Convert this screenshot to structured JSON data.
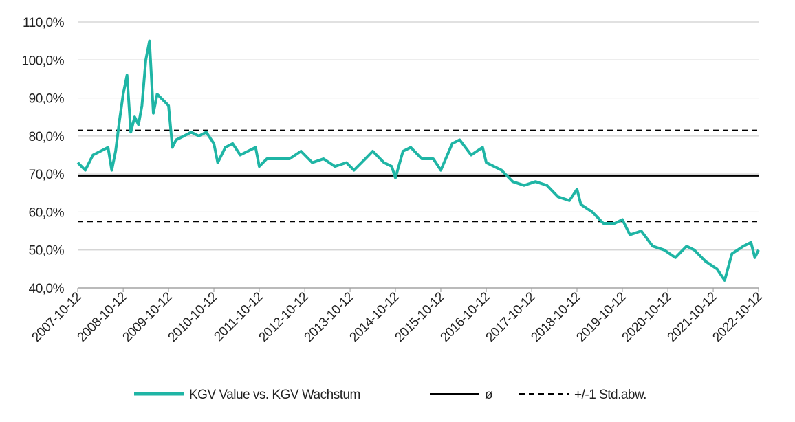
{
  "chart_data": {
    "type": "line",
    "x": [
      "2007-10-12",
      "2007-12-12",
      "2008-02-12",
      "2008-04-12",
      "2008-06-12",
      "2008-07-12",
      "2008-08-12",
      "2008-09-12",
      "2008-10-12",
      "2008-11-12",
      "2008-12-12",
      "2009-01-12",
      "2009-02-12",
      "2009-03-12",
      "2009-04-12",
      "2009-05-12",
      "2009-06-12",
      "2009-07-12",
      "2009-08-12",
      "2009-09-12",
      "2009-10-12",
      "2009-11-12",
      "2009-12-12",
      "2010-02-12",
      "2010-04-12",
      "2010-06-12",
      "2010-08-12",
      "2010-10-12",
      "2010-11-12",
      "2011-01-12",
      "2011-03-12",
      "2011-05-12",
      "2011-07-12",
      "2011-09-12",
      "2011-10-12",
      "2011-12-12",
      "2012-03-12",
      "2012-06-12",
      "2012-09-12",
      "2012-12-12",
      "2013-03-12",
      "2013-06-12",
      "2013-09-12",
      "2013-11-12",
      "2014-02-12",
      "2014-04-12",
      "2014-07-12",
      "2014-09-12",
      "2014-10-12",
      "2014-12-12",
      "2015-02-12",
      "2015-05-12",
      "2015-08-12",
      "2015-10-12",
      "2016-01-12",
      "2016-03-12",
      "2016-06-12",
      "2016-09-12",
      "2016-10-12",
      "2017-02-12",
      "2017-05-12",
      "2017-08-12",
      "2017-11-12",
      "2018-02-12",
      "2018-05-12",
      "2018-08-12",
      "2018-10-12",
      "2018-11-12",
      "2019-02-12",
      "2019-05-12",
      "2019-08-12",
      "2019-10-12",
      "2019-12-12",
      "2020-03-12",
      "2020-06-12",
      "2020-09-12",
      "2020-12-12",
      "2021-03-12",
      "2021-05-12",
      "2021-08-12",
      "2021-11-12",
      "2022-01-12",
      "2022-03-12",
      "2022-06-12",
      "2022-08-12",
      "2022-09-12",
      "2022-10-12"
    ],
    "series": [
      {
        "name": "KGV Value vs. KGV Wachstum",
        "color": "#1fb5a5",
        "values": [
          73,
          71,
          75,
          76,
          77,
          71,
          76,
          84,
          91,
          96,
          81,
          85,
          83,
          88,
          100,
          105,
          86,
          91,
          90,
          89,
          88,
          77,
          79,
          80,
          81,
          80,
          81,
          78,
          73,
          77,
          78,
          75,
          76,
          77,
          72,
          74,
          74,
          74,
          76,
          73,
          74,
          72,
          73,
          71,
          74,
          76,
          73,
          72,
          69,
          76,
          77,
          74,
          74,
          71,
          78,
          79,
          75,
          77,
          73,
          71,
          68,
          67,
          68,
          67,
          64,
          63,
          66,
          62,
          60,
          57,
          57,
          58,
          54,
          55,
          51,
          50,
          48,
          51,
          50,
          47,
          45,
          42,
          49,
          51,
          52,
          48,
          50
        ]
      }
    ],
    "reference_lines": [
      {
        "name": "ø",
        "values": [
          69.5
        ],
        "style": "solid",
        "color": "#000000"
      },
      {
        "name": "+/-1 Std.abw.",
        "values": [
          81.5,
          57.5
        ],
        "style": "dashed",
        "color": "#000000"
      }
    ],
    "xlim": [
      "2007-10-12",
      "2022-10-12"
    ],
    "xticks": [
      "2007-10-12",
      "2008-10-12",
      "2009-10-12",
      "2010-10-12",
      "2011-10-12",
      "2012-10-12",
      "2013-10-12",
      "2014-10-12",
      "2015-10-12",
      "2016-10-12",
      "2017-10-12",
      "2018-10-12",
      "2019-10-12",
      "2020-10-12",
      "2021-10-12",
      "2022-10-12"
    ],
    "ylim": [
      40,
      110
    ],
    "yticks": [
      {
        "value": 40,
        "label": "40,0%"
      },
      {
        "value": 50,
        "label": "50,0%"
      },
      {
        "value": 60,
        "label": "60,0%"
      },
      {
        "value": 70,
        "label": "70,0%"
      },
      {
        "value": 80,
        "label": "80,0%"
      },
      {
        "value": 90,
        "label": "90,0%"
      },
      {
        "value": 100,
        "label": "100,0%"
      },
      {
        "value": 110,
        "label": "110,0%"
      }
    ],
    "grid": true
  }
}
